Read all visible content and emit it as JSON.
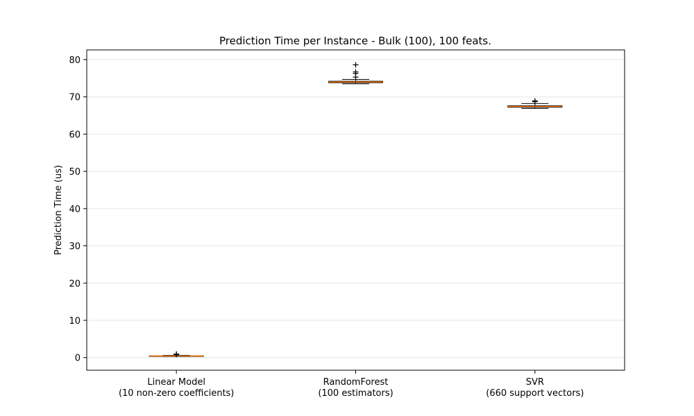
{
  "chart_data": {
    "type": "box",
    "title": "Prediction Time per Instance - Bulk (100), 100 feats.",
    "xlabel": "",
    "ylabel": "Prediction Time (us)",
    "ylim": [
      -3.4,
      82.6
    ],
    "yticks": [
      0,
      10,
      20,
      30,
      40,
      50,
      60,
      70,
      80
    ],
    "grid": "y",
    "categories": [
      [
        "Linear Model",
        "(10 non-zero coefficients)"
      ],
      [
        "RandomForest",
        "(100 estimators)"
      ],
      [
        "SVR",
        "(660 support vectors)"
      ]
    ],
    "boxes": [
      {
        "whislo": 0.3,
        "q1": 0.4,
        "med": 0.45,
        "q3": 0.5,
        "whishi": 0.6,
        "fliers": [
          0.95,
          0.8
        ]
      },
      {
        "whislo": 73.5,
        "q1": 73.8,
        "med": 74.0,
        "q3": 74.2,
        "whishi": 74.7,
        "fliers": [
          78.6,
          76.7,
          76.3,
          75.3
        ]
      },
      {
        "whislo": 66.9,
        "q1": 67.2,
        "med": 67.4,
        "q3": 67.6,
        "whishi": 68.2,
        "fliers": [
          68.9,
          68.7
        ]
      }
    ],
    "colors": {
      "median": "#ff7f0e",
      "box": "#000000",
      "grid": "#e6e6e6"
    }
  }
}
